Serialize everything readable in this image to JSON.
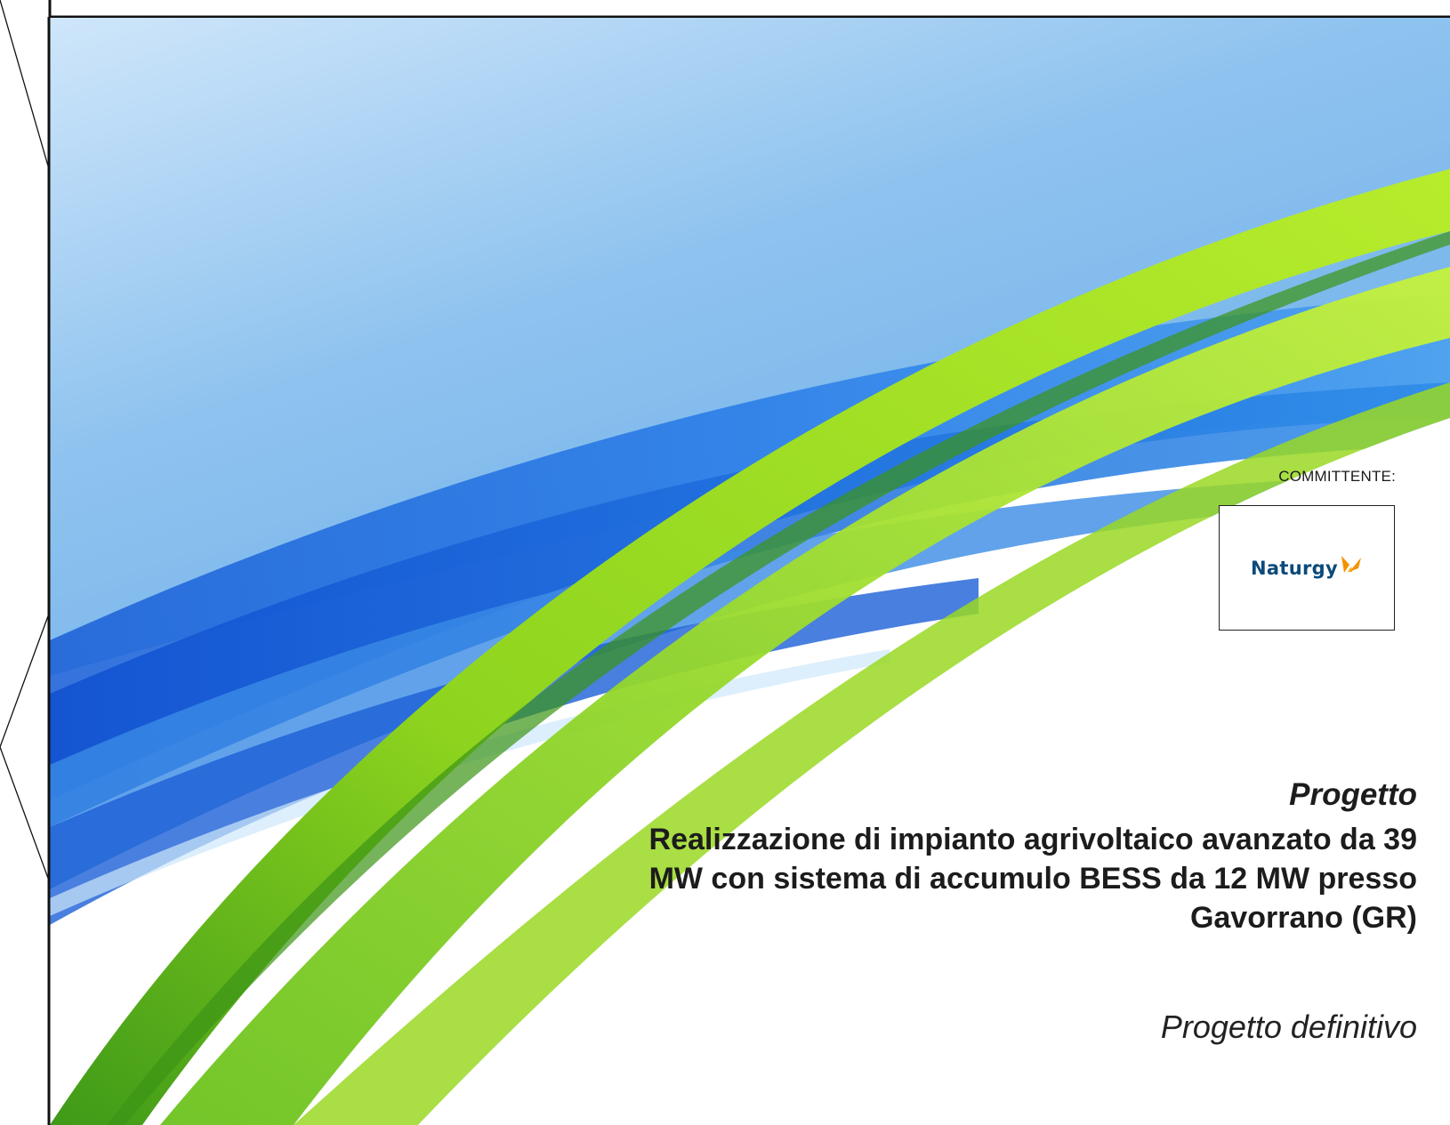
{
  "committente_label": "COMMITTENTE:",
  "logo": {
    "wordmark": "Naturgy",
    "mark_icon": "naturgy-butterfly-icon",
    "wordmark_color": "#0b4a7a",
    "mark_color": "#f39200"
  },
  "title": {
    "kicker": "Progetto",
    "line1": "Realizzazione di impianto agrivoltaico avanzato da 39",
    "line2": "MW con sistema di accumulo BESS da 12 MW presso",
    "line3": "Gavorrano (GR)"
  },
  "subtitle": "Progetto definitivo",
  "colors": {
    "sky_blue": "#a9d3f3",
    "deep_blue": "#1e6fe0",
    "lime_green": "#a9e22a",
    "dark_green": "#4aa21a"
  }
}
